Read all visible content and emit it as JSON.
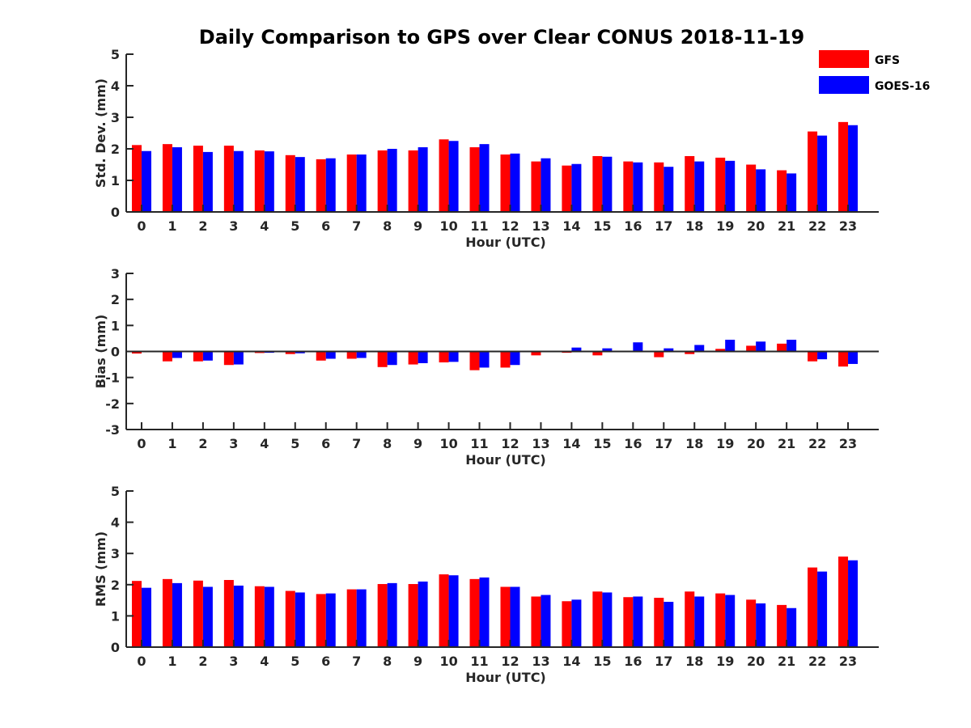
{
  "title": "Daily Comparison to GPS over Clear CONUS 2018-11-19",
  "colors": {
    "GFS": "#ff0000",
    "GOES-16": "#0000ff",
    "axis": "#262626"
  },
  "legend": [
    {
      "name": "GFS",
      "color": "#ff0000"
    },
    {
      "name": "GOES-16",
      "color": "#0000ff"
    }
  ],
  "chart_data": [
    {
      "type": "bar",
      "title": "Daily Comparison to GPS over Clear CONUS 2018-11-19",
      "xlabel": "Hour (UTC)",
      "ylabel": "Std. Dev. (mm)",
      "ylim": [
        0,
        5
      ],
      "yticks": [
        "0",
        "1",
        "2",
        "3",
        "4",
        "5"
      ],
      "legend_position": "top-right",
      "categories": [
        "0",
        "1",
        "2",
        "3",
        "4",
        "5",
        "6",
        "7",
        "8",
        "9",
        "10",
        "11",
        "12",
        "13",
        "14",
        "15",
        "16",
        "17",
        "18",
        "19",
        "20",
        "21",
        "22",
        "23"
      ],
      "series": [
        {
          "name": "GFS",
          "values": [
            2.12,
            2.15,
            2.1,
            2.1,
            1.95,
            1.8,
            1.67,
            1.82,
            1.95,
            1.95,
            2.3,
            2.05,
            1.82,
            1.6,
            1.47,
            1.77,
            1.6,
            1.57,
            1.77,
            1.72,
            1.5,
            1.32,
            2.55,
            2.85
          ]
        },
        {
          "name": "GOES-16",
          "values": [
            1.93,
            2.05,
            1.9,
            1.93,
            1.92,
            1.74,
            1.7,
            1.82,
            2.0,
            2.05,
            2.25,
            2.15,
            1.85,
            1.7,
            1.52,
            1.75,
            1.57,
            1.43,
            1.6,
            1.62,
            1.35,
            1.22,
            2.42,
            2.75
          ]
        }
      ]
    },
    {
      "type": "bar",
      "title": "",
      "xlabel": "Hour (UTC)",
      "ylabel": "Bias (mm)",
      "ylim": [
        -3,
        3
      ],
      "yticks": [
        "-3",
        "-2",
        "-1",
        "0",
        "1",
        "2",
        "3"
      ],
      "categories": [
        "0",
        "1",
        "2",
        "3",
        "4",
        "5",
        "6",
        "7",
        "8",
        "9",
        "10",
        "11",
        "12",
        "13",
        "14",
        "15",
        "16",
        "17",
        "18",
        "19",
        "20",
        "21",
        "22",
        "23"
      ],
      "series": [
        {
          "name": "GFS",
          "values": [
            -0.08,
            -0.38,
            -0.38,
            -0.52,
            -0.06,
            -0.1,
            -0.35,
            -0.28,
            -0.6,
            -0.5,
            -0.42,
            -0.72,
            -0.62,
            -0.15,
            -0.05,
            -0.15,
            -0.03,
            -0.22,
            -0.1,
            0.1,
            0.22,
            0.3,
            -0.38,
            -0.58
          ]
        },
        {
          "name": "GOES-16",
          "values": [
            0.0,
            -0.25,
            -0.35,
            -0.5,
            -0.05,
            -0.07,
            -0.28,
            -0.25,
            -0.52,
            -0.45,
            -0.4,
            -0.62,
            -0.52,
            -0.02,
            0.15,
            0.12,
            0.35,
            0.12,
            0.25,
            0.45,
            0.38,
            0.45,
            -0.3,
            -0.48
          ]
        }
      ]
    },
    {
      "type": "bar",
      "title": "",
      "xlabel": "Hour (UTC)",
      "ylabel": "RMS (mm)",
      "ylim": [
        0,
        5
      ],
      "yticks": [
        "0",
        "1",
        "2",
        "3",
        "4",
        "5"
      ],
      "categories": [
        "0",
        "1",
        "2",
        "3",
        "4",
        "5",
        "6",
        "7",
        "8",
        "9",
        "10",
        "11",
        "12",
        "13",
        "14",
        "15",
        "16",
        "17",
        "18",
        "19",
        "20",
        "21",
        "22",
        "23"
      ],
      "series": [
        {
          "name": "GFS",
          "values": [
            2.12,
            2.18,
            2.13,
            2.15,
            1.95,
            1.8,
            1.7,
            1.85,
            2.02,
            2.02,
            2.33,
            2.18,
            1.93,
            1.62,
            1.47,
            1.78,
            1.6,
            1.58,
            1.78,
            1.72,
            1.52,
            1.35,
            2.55,
            2.9
          ]
        },
        {
          "name": "GOES-16",
          "values": [
            1.9,
            2.05,
            1.93,
            1.97,
            1.93,
            1.75,
            1.72,
            1.85,
            2.05,
            2.1,
            2.3,
            2.23,
            1.93,
            1.67,
            1.52,
            1.75,
            1.62,
            1.45,
            1.62,
            1.67,
            1.4,
            1.25,
            2.42,
            2.78
          ]
        }
      ]
    }
  ]
}
